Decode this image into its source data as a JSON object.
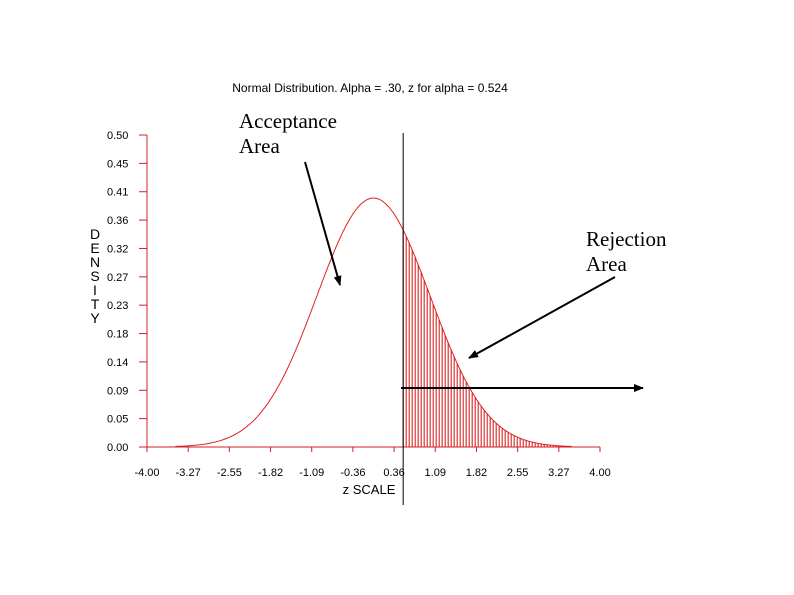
{
  "chart_data": {
    "type": "area",
    "title": "Normal Distribution. Alpha = .30, z for alpha = 0.524",
    "xlabel": "z SCALE",
    "ylabel": "DENSITY",
    "xlim": [
      -4.0,
      4.0
    ],
    "ylim": [
      0.0,
      0.5
    ],
    "x_tick_labels": [
      "-4.00",
      "-3.27",
      "-2.55",
      "-1.82",
      "-1.09",
      "-0.36",
      "0.36",
      "1.09",
      "1.82",
      "2.55",
      "3.27",
      "4.00"
    ],
    "y_tick_labels": [
      "0.00",
      "0.05",
      "0.09",
      "0.14",
      "0.18",
      "0.23",
      "0.27",
      "0.32",
      "0.36",
      "0.41",
      "0.45",
      "0.50"
    ],
    "curve": {
      "distribution": "normal",
      "mean": 0,
      "sd": 1,
      "color": "#e02020"
    },
    "critical_z": 0.524,
    "shaded_region": {
      "from": 0.524,
      "to": 4.0,
      "color": "#d01010"
    },
    "annotations": [
      {
        "id": "acceptance",
        "label": "Acceptance\nArea"
      },
      {
        "id": "rejection",
        "label": "Rejection\nArea"
      }
    ],
    "colors": {
      "axis": "#d02020",
      "text": "#000000"
    }
  }
}
